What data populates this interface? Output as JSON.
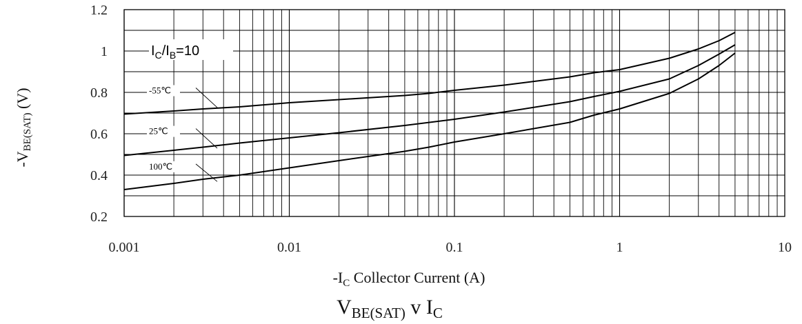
{
  "chart_data": {
    "type": "line",
    "title": {
      "main": "V",
      "sub": "BE(SAT)",
      "rest": " v I",
      "sub2": "C"
    },
    "xlabel": {
      "pre": "-I",
      "sub": "C",
      "rest": " Collector Current (A)"
    },
    "ylabel": {
      "pre": "-V",
      "sub": "BE(SAT)",
      "rest": " (V)"
    },
    "annotation": {
      "pre": "I",
      "sub1": "C",
      "mid": "/I",
      "sub2": "B",
      "rest": "=10"
    },
    "x_scale": "log",
    "xlim": [
      0.001,
      10
    ],
    "ylim": [
      0.2,
      1.2
    ],
    "grid": true,
    "x_ticks": [
      "0.001",
      "0.01",
      "0.1",
      "1",
      "10"
    ],
    "y_ticks": [
      "0.2",
      "0.4",
      "0.6",
      "0.8",
      "1",
      "1.2"
    ],
    "series": [
      {
        "name": "-55℃",
        "x": [
          0.001,
          0.002,
          0.003,
          0.005,
          0.01,
          0.02,
          0.05,
          0.07,
          0.1,
          0.2,
          0.5,
          0.7,
          1,
          2,
          3,
          4,
          5
        ],
        "y": [
          0.695,
          0.71,
          0.72,
          0.73,
          0.75,
          0.765,
          0.785,
          0.795,
          0.81,
          0.835,
          0.875,
          0.895,
          0.91,
          0.965,
          1.01,
          1.05,
          1.09
        ]
      },
      {
        "name": "25℃",
        "x": [
          0.001,
          0.002,
          0.003,
          0.005,
          0.01,
          0.02,
          0.05,
          0.1,
          0.2,
          0.5,
          0.7,
          1,
          2,
          3,
          4,
          5
        ],
        "y": [
          0.495,
          0.52,
          0.535,
          0.555,
          0.58,
          0.605,
          0.64,
          0.67,
          0.705,
          0.755,
          0.78,
          0.805,
          0.865,
          0.93,
          0.985,
          1.03
        ]
      },
      {
        "name": "100℃",
        "x": [
          0.001,
          0.002,
          0.003,
          0.005,
          0.01,
          0.02,
          0.05,
          0.07,
          0.1,
          0.2,
          0.5,
          0.7,
          1,
          2,
          3,
          4,
          5
        ],
        "y": [
          0.33,
          0.36,
          0.38,
          0.4,
          0.435,
          0.47,
          0.515,
          0.535,
          0.56,
          0.6,
          0.655,
          0.69,
          0.72,
          0.795,
          0.865,
          0.93,
          0.99
        ]
      }
    ]
  }
}
